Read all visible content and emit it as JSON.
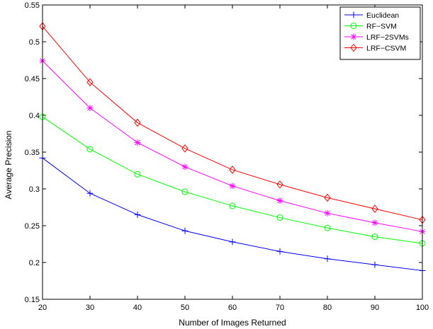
{
  "chart_data": {
    "type": "line",
    "title": "",
    "xlabel": "Number of Images Returned",
    "ylabel": "Average Precision",
    "xlim": [
      20,
      100
    ],
    "ylim": [
      0.15,
      0.55
    ],
    "xticks": [
      20,
      30,
      40,
      50,
      60,
      70,
      80,
      90,
      100
    ],
    "xtick_labels": [
      "20",
      "30",
      "40",
      "50",
      "60",
      "70",
      "80",
      "90",
      "100"
    ],
    "yticks": [
      0.15,
      0.2,
      0.25,
      0.3,
      0.35,
      0.4,
      0.45,
      0.5,
      0.55
    ],
    "ytick_labels": [
      "0.15",
      "0.2",
      "0.25",
      "0.3",
      "0.35",
      "0.4",
      "0.45",
      "0.5",
      "0.55"
    ],
    "grid": false,
    "legend_position": "top-right",
    "x": [
      20,
      30,
      40,
      50,
      60,
      70,
      80,
      90,
      100
    ],
    "series": [
      {
        "name": "Euclidean",
        "color": "#0000ff",
        "marker": "plus",
        "values": [
          0.342,
          0.294,
          0.265,
          0.243,
          0.228,
          0.215,
          0.205,
          0.197,
          0.189
        ]
      },
      {
        "name": "RF−SVM",
        "color": "#00ff00",
        "marker": "circle",
        "values": [
          0.398,
          0.354,
          0.32,
          0.296,
          0.277,
          0.261,
          0.247,
          0.235,
          0.226
        ]
      },
      {
        "name": "LRF−2SVMs",
        "color": "#ff00ff",
        "marker": "star",
        "values": [
          0.474,
          0.41,
          0.363,
          0.33,
          0.304,
          0.284,
          0.267,
          0.254,
          0.242
        ]
      },
      {
        "name": "LRF−CSVM",
        "color": "#ff0000",
        "marker": "diamond",
        "values": [
          0.521,
          0.445,
          0.39,
          0.355,
          0.326,
          0.306,
          0.288,
          0.273,
          0.258
        ]
      }
    ]
  }
}
